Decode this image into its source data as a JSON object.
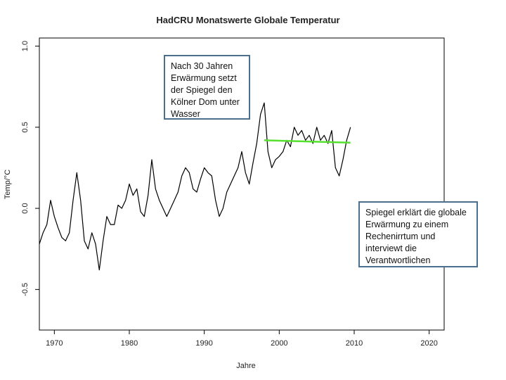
{
  "chart_data": {
    "type": "line",
    "title": "HadCRU Monatswerte Globale Temperatur",
    "xlabel": "Jahre",
    "ylabel": "Temp/°C",
    "xlim": [
      1968,
      2022
    ],
    "ylim": [
      -0.75,
      1.05
    ],
    "x_ticks": [
      1970,
      1980,
      1990,
      2000,
      2010,
      2020
    ],
    "y_ticks": [
      -0.5,
      0.0,
      0.5,
      1.0
    ],
    "y_tick_labels": [
      "-0.5",
      "0.0",
      "0.5",
      "1.0"
    ],
    "grid": false,
    "series": [
      {
        "color": "#000000",
        "x": [
          1968.0,
          1968.5,
          1969.0,
          1969.5,
          1970.0,
          1970.5,
          1971.0,
          1971.5,
          1972.0,
          1972.5,
          1973.0,
          1973.5,
          1974.0,
          1974.5,
          1975.0,
          1975.5,
          1976.0,
          1976.5,
          1977.0,
          1977.5,
          1978.0,
          1978.5,
          1979.0,
          1979.5,
          1980.0,
          1980.5,
          1981.0,
          1981.5,
          1982.0,
          1982.5,
          1983.0,
          1983.5,
          1984.0,
          1984.5,
          1985.0,
          1985.5,
          1986.0,
          1986.5,
          1987.0,
          1987.5,
          1988.0,
          1988.5,
          1989.0,
          1989.5,
          1990.0,
          1990.5,
          1991.0,
          1991.5,
          1992.0,
          1992.5,
          1993.0,
          1993.5,
          1994.0,
          1994.5,
          1995.0,
          1995.5,
          1996.0,
          1996.5,
          1997.0,
          1997.5,
          1998.0,
          1998.5,
          1999.0,
          1999.5,
          2000.0,
          2000.5,
          2001.0,
          2001.5,
          2002.0,
          2002.5,
          2003.0,
          2003.5,
          2004.0,
          2004.5,
          2005.0,
          2005.5,
          2006.0,
          2006.5,
          2007.0,
          2007.5,
          2008.0,
          2008.5,
          2009.0,
          2009.5
        ],
        "y": [
          -0.22,
          -0.15,
          -0.1,
          0.05,
          -0.05,
          -0.12,
          -0.18,
          -0.2,
          -0.15,
          0.05,
          0.22,
          0.05,
          -0.2,
          -0.25,
          -0.15,
          -0.22,
          -0.38,
          -0.2,
          -0.05,
          -0.1,
          -0.1,
          0.02,
          0.0,
          0.05,
          0.15,
          0.08,
          0.12,
          -0.02,
          -0.05,
          0.08,
          0.3,
          0.12,
          0.05,
          0.0,
          -0.05,
          0.0,
          0.05,
          0.1,
          0.2,
          0.25,
          0.22,
          0.12,
          0.1,
          0.18,
          0.25,
          0.22,
          0.2,
          0.05,
          -0.05,
          0.0,
          0.1,
          0.15,
          0.2,
          0.25,
          0.35,
          0.22,
          0.15,
          0.28,
          0.4,
          0.58,
          0.65,
          0.35,
          0.25,
          0.3,
          0.32,
          0.35,
          0.42,
          0.38,
          0.5,
          0.45,
          0.48,
          0.42,
          0.45,
          0.4,
          0.5,
          0.42,
          0.45,
          0.4,
          0.48,
          0.25,
          0.2,
          0.3,
          0.42,
          0.5
        ]
      },
      {
        "color": "#55e02e",
        "x": [
          1998.0,
          2009.5
        ],
        "y": [
          0.42,
          0.405
        ]
      }
    ],
    "annotations": [
      "Nach 30 Jahren Erwärmung setzt der Spiegel den Kölner Dom unter Wasser",
      "Spiegel erklärt die globale Erwärmung zu einem Rechenirrtum und interviewt die Verantwortlichen"
    ]
  }
}
